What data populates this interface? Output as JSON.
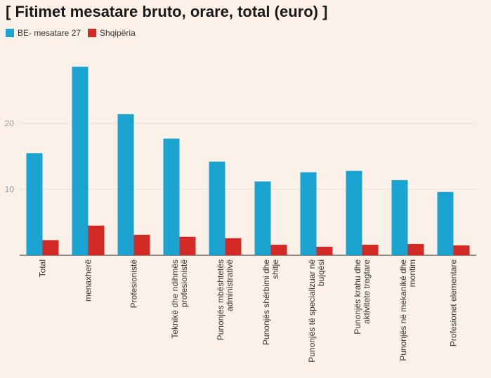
{
  "title": "[ Fitimet mesatare bruto, orare, total (euro) ]",
  "colors": {
    "series1": "#1aa3d0",
    "series2": "#d42a26",
    "background": "#fbf1e8",
    "grid": "#e9dfd6"
  },
  "chart_data": {
    "type": "bar",
    "title": "[ Fitimet mesatare bruto, orare, total (euro) ]",
    "xlabel": "",
    "ylabel": "",
    "ylim": [
      0,
      30
    ],
    "yticks": [
      10,
      20
    ],
    "grid": true,
    "legend_position": "top-left",
    "categories": [
      [
        "Total"
      ],
      [
        "menaxherë"
      ],
      [
        "Profesionistë"
      ],
      [
        "Teknikë dhe ndihmës",
        "profesionistë"
      ],
      [
        "Punonjës mbështetës",
        "administrativë"
      ],
      [
        "Punonjës shërbimi dhe",
        "shitje"
      ],
      [
        "Punonjës të specializuar në",
        "bujqësi"
      ],
      [
        "Punonjës krahu dhe",
        "aktivitete tregtare"
      ],
      [
        "Punonjës në mekanikë dhe",
        "montim"
      ],
      [
        "Profesionet elementare"
      ]
    ],
    "series": [
      {
        "name": "BE- mesatare 27",
        "color": "#1aa3d0",
        "values": [
          15.5,
          28.6,
          21.4,
          17.7,
          14.2,
          11.2,
          12.6,
          12.8,
          11.4,
          9.6
        ]
      },
      {
        "name": "Shqipëria",
        "color": "#d42a26",
        "values": [
          2.3,
          4.5,
          3.1,
          2.8,
          2.6,
          1.6,
          1.3,
          1.6,
          1.7,
          1.5
        ]
      }
    ]
  }
}
